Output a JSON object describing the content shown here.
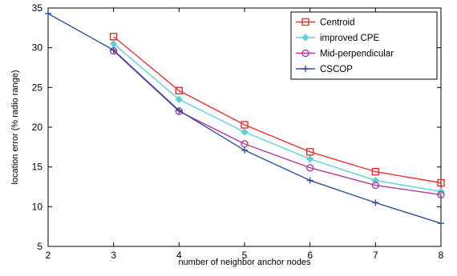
{
  "chart_data": {
    "type": "line",
    "title": "",
    "xlabel": "number of neighbor anchor nodes",
    "ylabel": "location error (% radio range)",
    "xlim": [
      2,
      8
    ],
    "ylim": [
      5,
      35
    ],
    "xticks": [
      2,
      3,
      4,
      5,
      6,
      7,
      8
    ],
    "yticks": [
      5,
      10,
      15,
      20,
      25,
      30,
      35
    ],
    "grid": false,
    "legend_position": "top-right",
    "series": [
      {
        "name": "Centroid",
        "color": "#e8302f",
        "marker": "square",
        "x": [
          3,
          4,
          5,
          6,
          7,
          8
        ],
        "y": [
          31.4,
          24.6,
          20.3,
          16.9,
          14.4,
          13.0
        ]
      },
      {
        "name": "improved CPE",
        "color": "#5fd0d8",
        "marker": "diamond",
        "x": [
          3,
          4,
          5,
          6,
          7,
          8
        ],
        "y": [
          30.5,
          23.5,
          19.4,
          16.0,
          13.3,
          11.9
        ]
      },
      {
        "name": "Mid-perpendicular",
        "color": "#b03a9a",
        "marker": "circle",
        "x": [
          3,
          4,
          5,
          6,
          7,
          8
        ],
        "y": [
          29.6,
          22.0,
          17.9,
          14.9,
          12.7,
          11.5
        ]
      },
      {
        "name": "CSCOP",
        "color": "#2e4f9f",
        "marker": "plus",
        "x": [
          2,
          3,
          4,
          5,
          6,
          7,
          8
        ],
        "y": [
          34.3,
          29.7,
          22.1,
          17.1,
          13.3,
          10.5,
          7.9
        ]
      }
    ]
  }
}
